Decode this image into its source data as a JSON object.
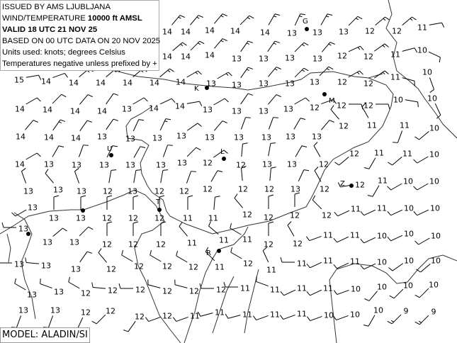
{
  "header": {
    "issued": "ISSUED BY AMS LJUBLJANA",
    "product_prefix": "WIND/TEMPERATURE ",
    "level": "10000 ft AMSL",
    "valid": "VALID 18 UTC 21 NOV 25",
    "based_on": "BASED ON 00 UTC DATA ON 20 NOV 2025",
    "units": "Units used: knots; degrees Celsius",
    "note": "Temperatures negative unless prefixed by +"
  },
  "model": "MODEL: ALADIN/SI",
  "cities": [
    {
      "label": "G"
    },
    {
      "label": "K"
    },
    {
      "label": "M"
    },
    {
      "label": "U"
    },
    {
      "label": "L"
    },
    {
      "label": "T"
    },
    {
      "label": "R"
    },
    {
      "label": "Z"
    },
    {
      "label": ""
    },
    {
      "label": ""
    }
  ],
  "stations_fields": [
    "temperature_c",
    "wind_dir_deg",
    "wind_speed_kt"
  ],
  "stations": [
    [
      14,
      40,
      15
    ],
    [
      14,
      40,
      15
    ],
    [
      14,
      40,
      15
    ],
    [
      14,
      45,
      15
    ],
    [
      14,
      30,
      15
    ],
    [
      13,
      25,
      15
    ],
    [
      13,
      30,
      15
    ],
    [
      13,
      45,
      15
    ],
    [
      12,
      50,
      15
    ],
    [
      12,
      50,
      15
    ],
    [
      11,
      80,
      10
    ],
    [
      14,
      50,
      15
    ],
    [
      14,
      45,
      15
    ],
    [
      14,
      40,
      15
    ],
    [
      13,
      35,
      15
    ],
    [
      13,
      35,
      15
    ],
    [
      13,
      45,
      15
    ],
    [
      13,
      40,
      15
    ],
    [
      12,
      65,
      15
    ],
    [
      12,
      55,
      15
    ],
    [
      11,
      75,
      10
    ],
    [
      10,
      115,
      10
    ],
    [
      15,
      80,
      10
    ],
    [
      14,
      70,
      10
    ],
    [
      14,
      50,
      15
    ],
    [
      14,
      50,
      15
    ],
    [
      14,
      50,
      15
    ],
    [
      14,
      50,
      15
    ],
    [
      14,
      60,
      15
    ],
    [
      13,
      60,
      15
    ],
    [
      13,
      35,
      15
    ],
    [
      13,
      40,
      15
    ],
    [
      13,
      45,
      15
    ],
    [
      13,
      45,
      15
    ],
    [
      12,
      60,
      15
    ],
    [
      12,
      55,
      15
    ],
    [
      11,
      105,
      10
    ],
    [
      10,
      160,
      10
    ],
    [
      14,
      60,
      10
    ],
    [
      14,
      45,
      10
    ],
    [
      14,
      40,
      10
    ],
    [
      14,
      35,
      10
    ],
    [
      13,
      60,
      10
    ],
    [
      14,
      65,
      10
    ],
    [
      14,
      80,
      10
    ],
    [
      13,
      60,
      10
    ],
    [
      13,
      35,
      10
    ],
    [
      13,
      40,
      10
    ],
    [
      13,
      60,
      10
    ],
    [
      12,
      70,
      10
    ],
    [
      12,
      90,
      10
    ],
    [
      12,
      90,
      10
    ],
    [
      10,
      100,
      10
    ],
    [
      10,
      155,
      10
    ],
    [
      14,
      40,
      10
    ],
    [
      14,
      35,
      15
    ],
    [
      14,
      35,
      10
    ],
    [
      13,
      35,
      10
    ],
    [
      13,
      25,
      10
    ],
    [
      13,
      25,
      15
    ],
    [
      13,
      55,
      10
    ],
    [
      13,
      40,
      10
    ],
    [
      13,
      20,
      10
    ],
    [
      13,
      20,
      10
    ],
    [
      13,
      30,
      10
    ],
    [
      13,
      40,
      10
    ],
    [
      12,
      320,
      10
    ],
    [
      11,
      330,
      10
    ],
    [
      11,
      200,
      10
    ],
    [
      10,
      230,
      10
    ],
    [
      14,
      60,
      10
    ],
    [
      13,
      30,
      10
    ],
    [
      13,
      20,
      10
    ],
    [
      13,
      25,
      10
    ],
    [
      13,
      30,
      10
    ],
    [
      13,
      20,
      10
    ],
    [
      13,
      45,
      10
    ],
    [
      12,
      55,
      10
    ],
    [
      12,
      5,
      10
    ],
    [
      13,
      10,
      10
    ],
    [
      13,
      30,
      10
    ],
    [
      12,
      330,
      10
    ],
    [
      12,
      230,
      10
    ],
    [
      11,
      210,
      10
    ],
    [
      11,
      230,
      10
    ],
    [
      10,
      240,
      10
    ],
    [
      13,
      340,
      10
    ],
    [
      13,
      320,
      10
    ],
    [
      13,
      340,
      10
    ],
    [
      12,
      10,
      10
    ],
    [
      13,
      10,
      10
    ],
    [
      12,
      10,
      10
    ],
    [
      12,
      20,
      10
    ],
    [
      12,
      30,
      10
    ],
    [
      12,
      355,
      10
    ],
    [
      12,
      5,
      10
    ],
    [
      13,
      25,
      10
    ],
    [
      12,
      330,
      10
    ],
    [
      12,
      260,
      10
    ],
    [
      11,
      210,
      10
    ],
    [
      10,
      240,
      10
    ],
    [
      10,
      240,
      10
    ],
    [
      13,
      240,
      10
    ],
    [
      13,
      0,
      10
    ],
    [
      13,
      0,
      10
    ],
    [
      12,
      0,
      10
    ],
    [
      12,
      0,
      10
    ],
    [
      12,
      0,
      10
    ],
    [
      11,
      0,
      10
    ],
    [
      11,
      5,
      10
    ],
    [
      12,
      320,
      10
    ],
    [
      12,
      0,
      10
    ],
    [
      12,
      0,
      10
    ],
    [
      12,
      315,
      10
    ],
    [
      11,
      245,
      10
    ],
    [
      11,
      245,
      10
    ],
    [
      10,
      245,
      10
    ],
    [
      10,
      245,
      10
    ],
    [
      13,
      270,
      10
    ],
    [
      13,
      50,
      10
    ],
    [
      13,
      45,
      10
    ],
    [
      12,
      0,
      10
    ],
    [
      12,
      0,
      10
    ],
    [
      12,
      0,
      10
    ],
    [
      11,
      320,
      10
    ],
    [
      11,
      310,
      10
    ],
    [
      11,
      300,
      10
    ],
    [
      12,
      0,
      10
    ],
    [
      12,
      330,
      10
    ],
    [
      11,
      250,
      10
    ],
    [
      11,
      245,
      10
    ],
    [
      10,
      245,
      10
    ],
    [
      10,
      245,
      10
    ],
    [
      10,
      240,
      10
    ],
    [
      13,
      270,
      10
    ],
    [
      13,
      275,
      10
    ],
    [
      13,
      35,
      10
    ],
    [
      12,
      320,
      10
    ],
    [
      12,
      300,
      10
    ],
    [
      12,
      300,
      10
    ],
    [
      12,
      300,
      10
    ],
    [
      11,
      315,
      10
    ],
    [
      12,
      300,
      10
    ],
    [
      11,
      335,
      10
    ],
    [
      11,
      270,
      10
    ],
    [
      11,
      245,
      10
    ],
    [
      11,
      245,
      10
    ],
    [
      10,
      245,
      10
    ],
    [
      10,
      235,
      10
    ],
    [
      10,
      230,
      10
    ],
    [
      13,
      300,
      10
    ],
    [
      13,
      290,
      10
    ],
    [
      12,
      300,
      10
    ],
    [
      12,
      275,
      10
    ],
    [
      12,
      270,
      10
    ],
    [
      12,
      285,
      10
    ],
    [
      12,
      285,
      10
    ],
    [
      12,
      270,
      10
    ],
    [
      11,
      270,
      10
    ],
    [
      11,
      290,
      10
    ],
    [
      11,
      245,
      10
    ],
    [
      11,
      245,
      10
    ],
    [
      10,
      250,
      10
    ],
    [
      10,
      220,
      10
    ],
    [
      10,
      225,
      10
    ],
    [
      10,
      225,
      10
    ],
    [
      13,
      200,
      10
    ],
    [
      13,
      200,
      10
    ],
    [
      12,
      205,
      10
    ],
    [
      12,
      225,
      10
    ],
    [
      12,
      215,
      10
    ],
    [
      12,
      250,
      10
    ],
    [
      11,
      250,
      10
    ],
    [
      11,
      255,
      10
    ],
    [
      11,
      255,
      10
    ],
    [
      11,
      250,
      10
    ],
    [
      11,
      250,
      10
    ],
    [
      10,
      250,
      10
    ],
    [
      10,
      250,
      10
    ],
    [
      10,
      210,
      10
    ],
    [
      9,
      225,
      15
    ],
    [
      9,
      225,
      15
    ]
  ]
}
